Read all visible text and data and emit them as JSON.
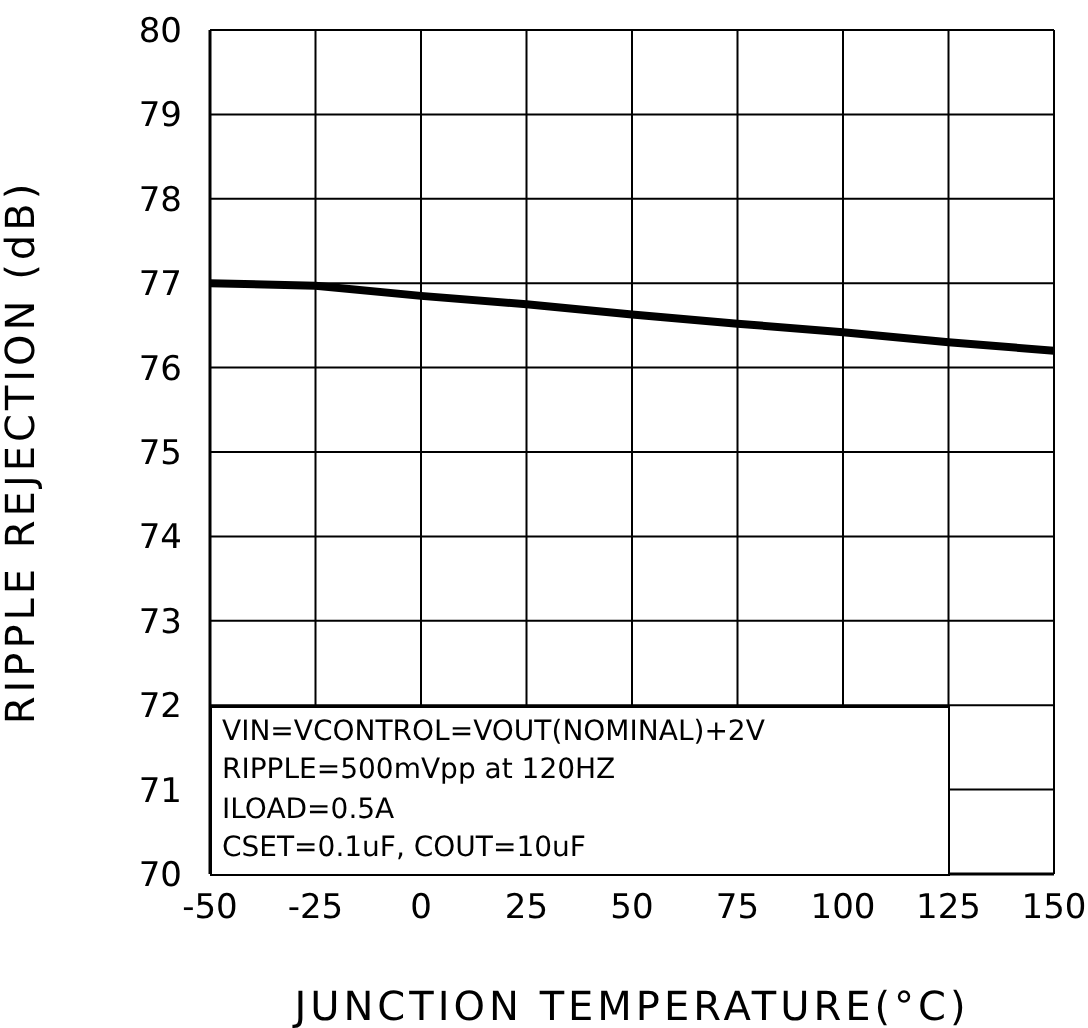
{
  "chart_data": {
    "type": "line",
    "xlabel": "JUNCTION TEMPERATURE(°C)",
    "ylabel": "RIPPLE REJECTION (dB)",
    "x": [
      -50,
      -25,
      0,
      25,
      50,
      75,
      100,
      125,
      150
    ],
    "series": [
      {
        "color": "#000000",
        "values": [
          77.0,
          76.97,
          76.85,
          76.75,
          76.63,
          76.52,
          76.42,
          76.3,
          76.2
        ]
      }
    ],
    "xlim": [
      -50,
      150
    ],
    "xticks": [
      -50,
      -25,
      0,
      25,
      50,
      75,
      100,
      125,
      150
    ],
    "ylim": [
      70,
      80
    ],
    "yticks": [
      70,
      71,
      72,
      73,
      74,
      75,
      76,
      77,
      78,
      79,
      80
    ],
    "grid": true,
    "marker": "none",
    "line_style": "solid",
    "annotations": [
      "VIN=VCONTROL=VOUT(NOMINAL)+2V",
      "RIPPLE=500mVpp at 120HZ",
      "ILOAD=0.5A",
      "CSET=0.1uF, COUT=10uF"
    ]
  }
}
